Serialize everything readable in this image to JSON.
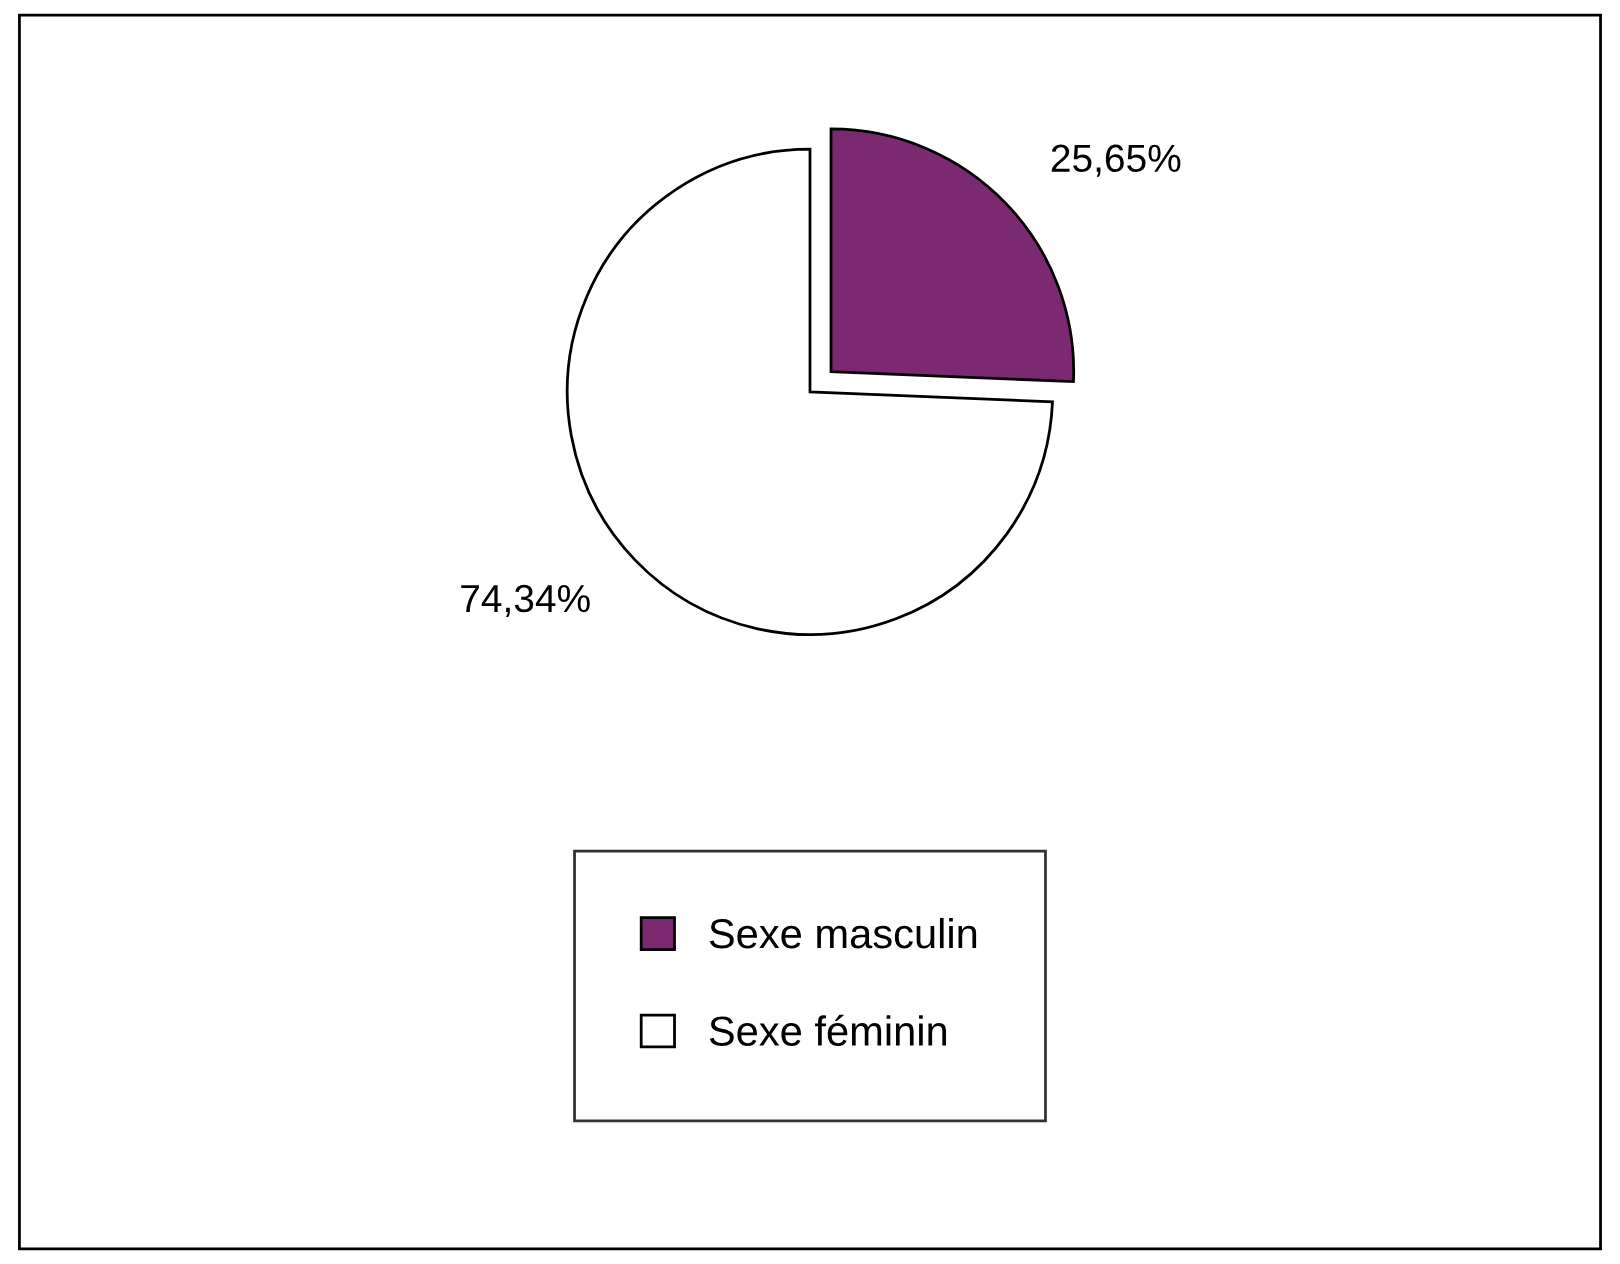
{
  "chart_data": {
    "type": "pie",
    "categories": [
      "Sexe masculin",
      "Sexe féminin"
    ],
    "values": [
      25.65,
      74.34
    ],
    "colors": [
      "#7b2a72",
      "#ffffff"
    ],
    "value_labels": [
      "25,65%",
      "74,34%"
    ],
    "legend": "bottom"
  }
}
